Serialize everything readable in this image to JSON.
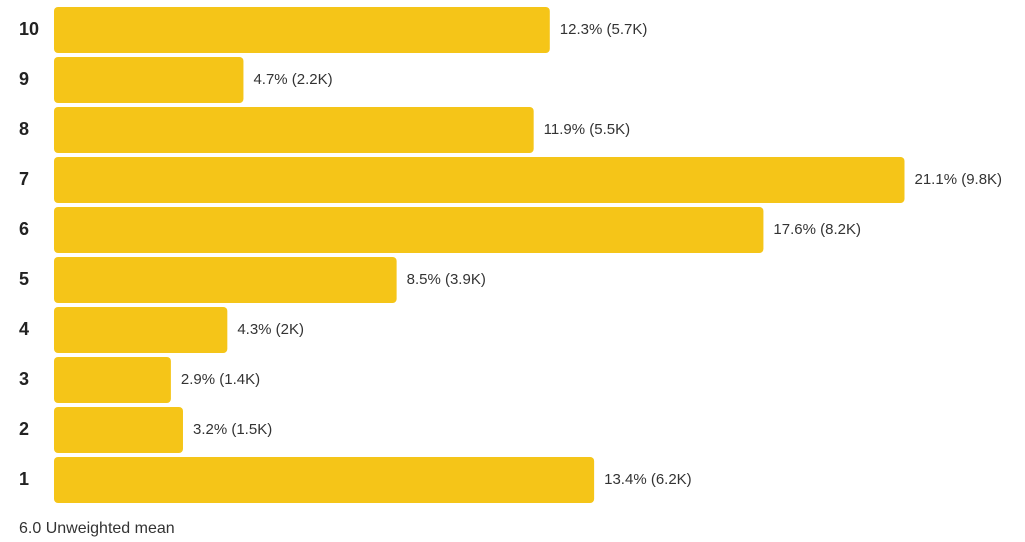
{
  "chart_data": {
    "type": "bar",
    "orientation": "horizontal",
    "categories": [
      "10",
      "9",
      "8",
      "7",
      "6",
      "5",
      "4",
      "3",
      "2",
      "1"
    ],
    "values": [
      12.3,
      4.7,
      11.9,
      21.1,
      17.6,
      8.5,
      4.3,
      2.9,
      3.2,
      13.4
    ],
    "counts": [
      "5.7K",
      "2.2K",
      "5.5K",
      "9.8K",
      "8.2K",
      "3.9K",
      "2K",
      "1.4K",
      "1.5K",
      "6.2K"
    ],
    "data_labels": [
      "12.3% (5.7K)",
      "4.7% (2.2K)",
      "11.9% (5.5K)",
      "21.1% (9.8K)",
      "17.6% (8.2K)",
      "8.5% (3.9K)",
      "4.3% (2K)",
      "2.9% (1.4K)",
      "3.2% (1.5K)",
      "13.4% (6.2K)"
    ],
    "bar_color": "#F5C518",
    "grid": false,
    "legend": "none"
  },
  "footer": {
    "text": "6.0 Unweighted mean"
  }
}
